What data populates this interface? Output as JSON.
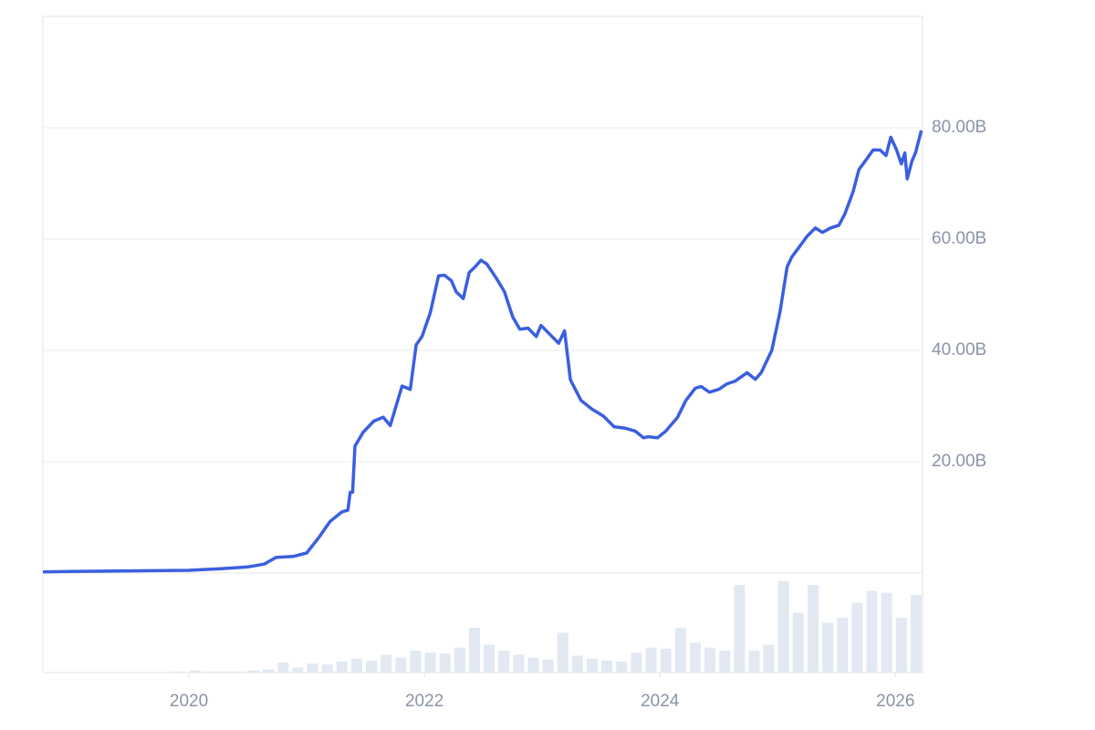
{
  "chart_data": [
    {
      "type": "line",
      "x": [
        2018.76,
        2019.0,
        2019.5,
        2020.0,
        2020.29,
        2020.5,
        2020.64,
        2020.74,
        2020.89,
        2021.0,
        2021.1,
        2021.2,
        2021.3,
        2021.35,
        2021.37,
        2021.39,
        2021.41,
        2021.48,
        2021.57,
        2021.65,
        2021.71,
        2021.81,
        2021.88,
        2021.93,
        2021.98,
        2022.05,
        2022.12,
        2022.17,
        2022.23,
        2022.27,
        2022.33,
        2022.38,
        2022.43,
        2022.48,
        2022.53,
        2022.61,
        2022.68,
        2022.75,
        2022.81,
        2022.88,
        2022.95,
        2022.99,
        2023.06,
        2023.14,
        2023.19,
        2023.24,
        2023.33,
        2023.42,
        2023.52,
        2023.61,
        2023.71,
        2023.79,
        2023.86,
        2023.9,
        2023.98,
        2024.05,
        2024.15,
        2024.22,
        2024.3,
        2024.35,
        2024.42,
        2024.5,
        2024.57,
        2024.64,
        2024.74,
        2024.81,
        2024.86,
        2024.95,
        2025.02,
        2025.08,
        2025.12,
        2025.18,
        2025.25,
        2025.32,
        2025.38,
        2025.45,
        2025.52,
        2025.57,
        2025.64,
        2025.69,
        2025.76,
        2025.81,
        2025.87,
        2025.92,
        2025.96,
        2026.01,
        2026.05,
        2026.08,
        2026.1,
        2026.14,
        2026.17,
        2026.22
      ],
      "values": [
        0.2,
        0.3,
        0.4,
        0.5,
        0.8,
        1.1,
        1.6,
        2.8,
        3.0,
        3.6,
        6.3,
        9.3,
        11,
        11.3,
        14.5,
        14.5,
        22.8,
        25.3,
        27.3,
        28,
        26.5,
        33.6,
        33,
        41,
        42.5,
        46.8,
        53.4,
        53.5,
        52.5,
        50.5,
        49.3,
        54,
        55,
        56.2,
        55.5,
        53,
        50.5,
        46,
        43.8,
        44,
        42.5,
        44.5,
        43,
        41.3,
        43.5,
        34.7,
        31,
        29.5,
        28.2,
        26.3,
        26,
        25.5,
        24.3,
        24.5,
        24.3,
        25.5,
        28,
        31,
        33.2,
        33.5,
        32.5,
        33,
        34,
        34.5,
        36,
        34.8,
        36,
        40,
        47,
        55,
        56.8,
        58.5,
        60.5,
        62,
        61.2,
        62,
        62.5,
        64.5,
        68.5,
        72.5,
        74.5,
        76,
        76,
        75,
        78.3,
        76,
        73.5,
        75.5,
        70.8,
        74,
        75.5,
        79.5
      ],
      "color": "#3a5fdf",
      "xlim": [
        2018.76,
        2026.23
      ],
      "ylim": [
        0,
        100
      ],
      "xticks": [
        2020,
        2022,
        2024,
        2026
      ],
      "yticks": [
        {
          "value": 20,
          "label": "20.00B"
        },
        {
          "value": 40,
          "label": "40.00B"
        },
        {
          "value": 60,
          "label": "60.00B"
        },
        {
          "value": 80,
          "label": "80.00B"
        }
      ],
      "grid": true
    },
    {
      "type": "bar",
      "x": [
        2018.8,
        2018.925,
        2019.05,
        2019.175,
        2019.3,
        2019.425,
        2019.55,
        2019.675,
        2019.8,
        2019.925,
        2020.05,
        2020.175,
        2020.3,
        2020.425,
        2020.55,
        2020.675,
        2020.8,
        2020.925,
        2021.05,
        2021.175,
        2021.3,
        2021.425,
        2021.55,
        2021.675,
        2021.8,
        2021.925,
        2022.05,
        2022.175,
        2022.3,
        2022.425,
        2022.55,
        2022.675,
        2022.8,
        2022.925,
        2023.05,
        2023.175,
        2023.3,
        2023.425,
        2023.55,
        2023.675,
        2023.8,
        2023.925,
        2024.05,
        2024.175,
        2024.3,
        2024.425,
        2024.55,
        2024.675,
        2024.8,
        2024.925,
        2025.05,
        2025.175,
        2025.3,
        2025.425,
        2025.55,
        2025.675,
        2025.8,
        2025.925,
        2026.05,
        2026.175
      ],
      "values": [
        0,
        0,
        0,
        0,
        0,
        0,
        0,
        0,
        0,
        1,
        2,
        1,
        1,
        1,
        2,
        3,
        10,
        5,
        9,
        8,
        11,
        14,
        12,
        18,
        15,
        22,
        20,
        19,
        25,
        45,
        28,
        22,
        18,
        15,
        13,
        40,
        17,
        14,
        12,
        11,
        20,
        25,
        24,
        45,
        30,
        25,
        22,
        88,
        22,
        28,
        92,
        60,
        88,
        50,
        55,
        70,
        82,
        80,
        55,
        78
      ],
      "color": "#e2e9f3",
      "xlim": [
        2018.76,
        2026.23
      ],
      "ylim": [
        0,
        100
      ]
    }
  ]
}
